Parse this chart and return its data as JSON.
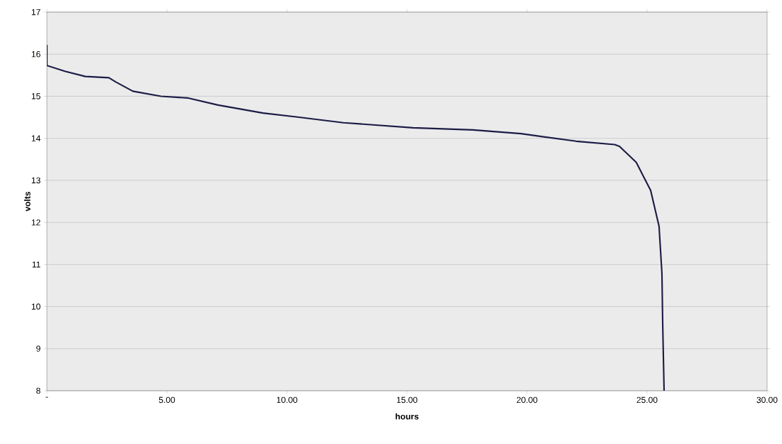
{
  "chart_data": {
    "type": "line",
    "xlabel": "hours",
    "ylabel": "volts",
    "x": [
      0,
      0,
      0.77,
      1.6,
      2.58,
      2.87,
      3.58,
      4.75,
      5.85,
      7.13,
      9.0,
      10.5,
      12.35,
      15.25,
      17.75,
      19.75,
      22.05,
      23.65,
      23.85,
      24.55,
      25.15,
      25.5,
      25.62,
      25.65,
      25.71
    ],
    "series": [
      {
        "color": "#1c1c46",
        "values": [
          16.22,
          15.73,
          15.59,
          15.47,
          15.44,
          15.34,
          15.12,
          15.0,
          14.96,
          14.79,
          14.6,
          14.5,
          14.37,
          14.25,
          14.2,
          14.11,
          13.93,
          13.85,
          13.81,
          13.43,
          12.76,
          11.91,
          10.79,
          9.65,
          8.0
        ]
      }
    ],
    "xlim": [
      0,
      30
    ],
    "xticks": [
      {
        "value": 0,
        "label": "-"
      },
      {
        "value": 5,
        "label": "5.00"
      },
      {
        "value": 10,
        "label": "10.00"
      },
      {
        "value": 15,
        "label": "15.00"
      },
      {
        "value": 20,
        "label": "20.00"
      },
      {
        "value": 25,
        "label": "25.00"
      },
      {
        "value": 30,
        "label": "30.00"
      }
    ],
    "ylim": [
      8,
      17
    ],
    "yticks": [
      8,
      9,
      10,
      11,
      12,
      13,
      14,
      15,
      16,
      17
    ],
    "grid": "y"
  }
}
